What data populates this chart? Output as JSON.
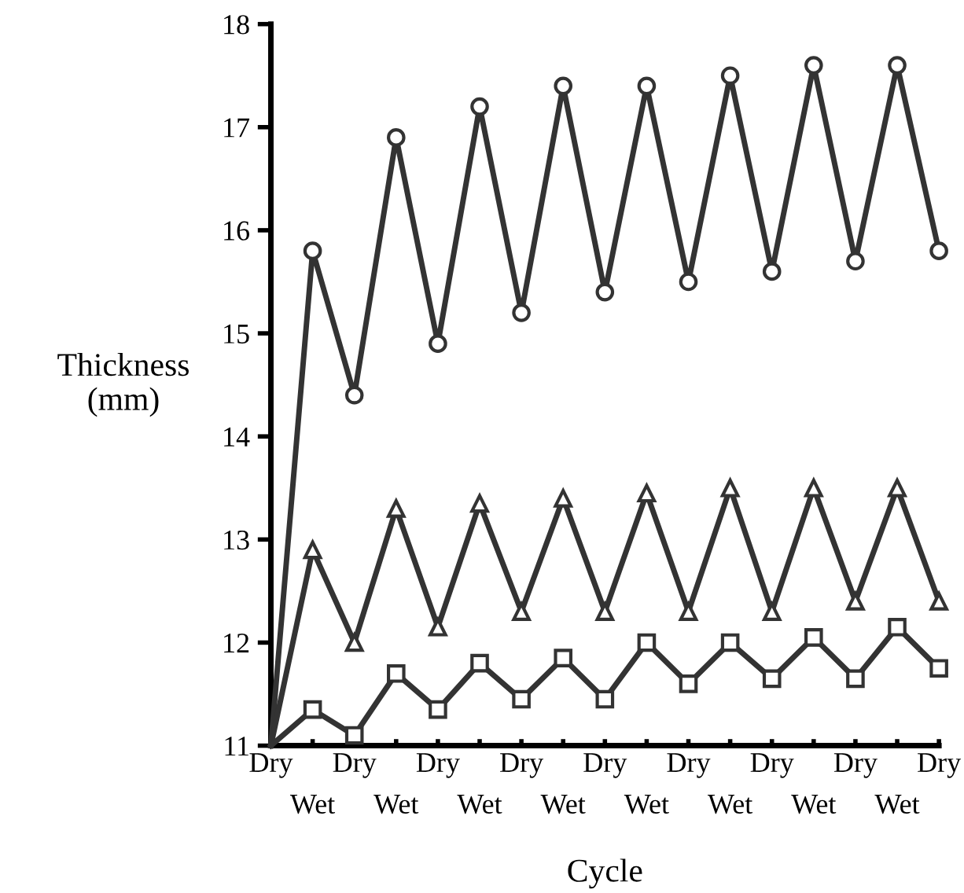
{
  "chart_data": {
    "type": "line",
    "xlabel": "Cycle",
    "ylabel": "Thickness\n(mm)",
    "categories": [
      "Dry",
      "Wet",
      "Dry",
      "Wet",
      "Dry",
      "Wet",
      "Dry",
      "Wet",
      "Dry",
      "Wet",
      "Dry",
      "Wet",
      "Dry",
      "Wet",
      "Dry",
      "Wet",
      "Dry"
    ],
    "series": [
      {
        "color": "#333333",
        "marker": "circle",
        "values": [
          11,
          15.8,
          14.4,
          16.9,
          14.9,
          17.2,
          15.2,
          17.4,
          15.4,
          17.4,
          15.5,
          17.5,
          15.6,
          17.6,
          15.7,
          17.6,
          15.8
        ]
      },
      {
        "color": "#333333",
        "marker": "triangle",
        "values": [
          11,
          12.9,
          12.0,
          13.3,
          12.15,
          13.35,
          12.3,
          13.4,
          12.3,
          13.45,
          12.3,
          13.5,
          12.3,
          13.5,
          12.4,
          13.5,
          12.4
        ]
      },
      {
        "color": "#333333",
        "marker": "square",
        "values": [
          11,
          11.35,
          11.1,
          11.7,
          11.35,
          11.8,
          11.45,
          11.85,
          11.45,
          12.0,
          11.6,
          12.0,
          11.65,
          12.05,
          11.65,
          12.15,
          11.75
        ]
      }
    ],
    "ylim": [
      11,
      18
    ],
    "yticks": [
      11,
      12,
      13,
      14,
      15,
      16,
      17,
      18
    ],
    "grid": false,
    "legend": false,
    "line_style": "solid"
  }
}
